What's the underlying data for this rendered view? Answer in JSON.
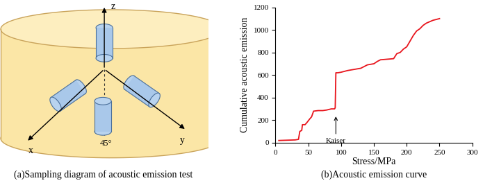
{
  "diagram": {
    "axis_labels": {
      "x": "x",
      "y": "y",
      "z": "z"
    },
    "angle_label": "45°",
    "caption": "(a)Sampling diagram of acoustic emission test"
  },
  "chart_data": {
    "type": "line",
    "title": "(b)Acoustic emission curve",
    "x_label": "Stress/MPa",
    "y_label": "Cumulative acoustic emission",
    "x": [
      5,
      30,
      35,
      37,
      40,
      41,
      45,
      48,
      52,
      55,
      58,
      65,
      72,
      78,
      85,
      90,
      91,
      92,
      95,
      100,
      110,
      120,
      130,
      140,
      150,
      155,
      160,
      170,
      180,
      185,
      190,
      195,
      200,
      205,
      210,
      215,
      220,
      225,
      230,
      240,
      250
    ],
    "series": [
      {
        "name": "Cumulative acoustic emission",
        "color": "#e8141c",
        "values": [
          20,
          25,
          30,
          100,
          110,
          160,
          160,
          180,
          210,
          230,
          280,
          285,
          285,
          290,
          300,
          300,
          310,
          620,
          620,
          625,
          640,
          650,
          660,
          690,
          700,
          720,
          735,
          740,
          745,
          790,
          800,
          830,
          850,
          900,
          950,
          990,
          1010,
          1040,
          1060,
          1085,
          1100
        ]
      }
    ],
    "xlim": [
      0,
      300
    ],
    "xticks": [
      0,
      50,
      100,
      150,
      200,
      250,
      300
    ],
    "ylim": [
      0,
      1200
    ],
    "yticks": [
      0,
      200,
      400,
      600,
      800,
      1000,
      1200
    ],
    "annotations": [
      {
        "text": "Kaiser",
        "x": 92,
        "y": 250
      }
    ],
    "grid": false
  }
}
